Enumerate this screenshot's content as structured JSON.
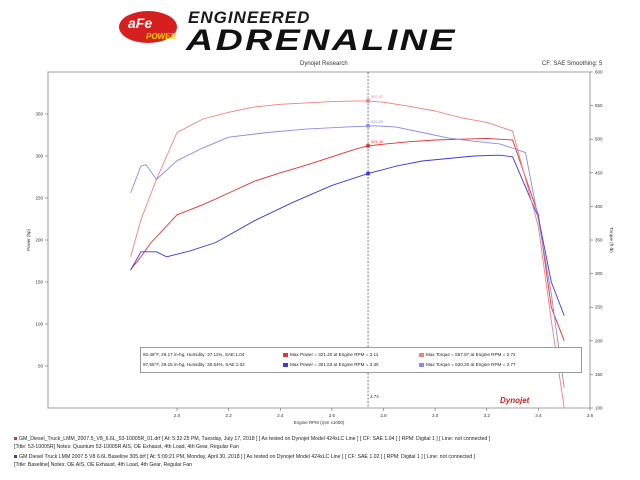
{
  "brand": {
    "logo_main": "aFe",
    "logo_sub": "POWER",
    "headline_top": "ENGINEERED",
    "headline_main": "ADRENALINE"
  },
  "header": {
    "center": "Dynojet Research",
    "right": "CF: SAE Smoothing: 5"
  },
  "colors": {
    "red": "#e53030",
    "blue": "#3a3ad8",
    "pink": "#f08080",
    "lavender": "#8a8ae6"
  },
  "legend": {
    "row1": {
      "conditions": "92.48°F, 29.17 in-hg, Humidity: 37.11%, SAE:1.04",
      "power": "Max Power = 321.40 at Engine RPM = 3.11",
      "torque": "Max Torque = 557.57 at Engine RPM = 2.72"
    },
    "row2": {
      "conditions": "97.65°F, 29.15 in-hg, Humidity: 30.54%, SAE:1.02",
      "power": "Max Power = 301.63 at Engine RPM = 3.30",
      "torque": "Max Torque = 520.20 at Engine RPM = 2.77"
    }
  },
  "footer": {
    "line1": "GM_Diesel_Truck_LMM_2007.5_V8_6.6L_53-10005R_01.drf   [ At: 5:32:25 PM, Tuesday, July 17, 2018 ]   [ As tested on Dynojet Model 424xLC Line ]   [ CF: SAE 1.04 ]   [ RPM: Digital 1 ]   [ Line: not connected ]",
    "line1b": "[Title: 53-10005R]  Notes: Quantum 53-10005R AIS, OE Exhaust, 4th Load, 4th Gear, Regular Fan",
    "line2": "GM Diesel Truck LMM 2007.5 V8 6.6L Baseline 305.drf   [ At: 5:09:21 PM, Monday, April 30, 2018 ]   [ As tested on Dynojet Model 424xLC Line ]   [ CF: SAE 1.02 ]   [ RPM: Digital 1 ]   [ Line: not connected ]",
    "line2b": "[Title: Baseline]  Notes: OE AIS, OE Exhaust, 4th Load, 4th Gear, Regular Fan"
  },
  "cursor": {
    "label": "2.74"
  },
  "dyno_brand": "Dynojet",
  "chart_data": {
    "type": "line",
    "xlabel": "Engine RPM (rpm x1000)",
    "ylabel_left": "Power (hp)",
    "ylabel_right": "Torque (ft-lb)",
    "xlim": [
      1.5,
      3.6
    ],
    "x_ticks": [
      "2.0",
      "2.2",
      "2.4",
      "2.6",
      "2.8",
      "3.0",
      "3.2",
      "3.4",
      "3.6"
    ],
    "ylim_left": [
      0,
      400
    ],
    "y_ticks_left": [
      "50",
      "100",
      "150",
      "200",
      "250",
      "300",
      "350"
    ],
    "ylim_right": [
      100,
      600
    ],
    "y_ticks_right": [
      "600",
      "550",
      "500",
      "450",
      "400",
      "350",
      "300",
      "250",
      "200",
      "150",
      "100"
    ],
    "grid": false,
    "cursor_rpm": 2.74,
    "cursor_values": [
      "557.57",
      "520.20",
      "321.40"
    ],
    "series": [
      {
        "axis": "left",
        "color": "#e53030",
        "x": [
          1.82,
          1.85,
          1.9,
          2.0,
          2.1,
          2.2,
          2.3,
          2.4,
          2.5,
          2.6,
          2.7,
          2.74,
          2.8,
          2.9,
          3.0,
          3.1,
          3.2,
          3.3,
          3.4,
          3.45,
          3.5
        ],
        "y": [
          165,
          176,
          197,
          230,
          242,
          256,
          270,
          280,
          289,
          299,
          309,
          312,
          314,
          317,
          319,
          320,
          321,
          319,
          230,
          120,
          80
        ]
      },
      {
        "axis": "left",
        "color": "#3a3ad8",
        "x": [
          1.82,
          1.86,
          1.92,
          1.96,
          2.05,
          2.15,
          2.3,
          2.45,
          2.6,
          2.74,
          2.85,
          2.95,
          3.05,
          3.15,
          3.25,
          3.3,
          3.4,
          3.45,
          3.5
        ],
        "y": [
          164,
          186,
          186,
          180,
          187,
          197,
          223,
          245,
          265,
          279,
          288,
          294,
          297,
          300,
          301,
          299,
          227,
          150,
          110
        ]
      },
      {
        "axis": "right",
        "color": "#f08080",
        "x": [
          1.82,
          1.86,
          1.92,
          2.0,
          2.1,
          2.2,
          2.3,
          2.4,
          2.5,
          2.6,
          2.7,
          2.74,
          2.8,
          2.9,
          3.0,
          3.1,
          3.2,
          3.3,
          3.4,
          3.45,
          3.5
        ],
        "y": [
          325,
          380,
          440,
          510,
          530,
          540,
          548,
          552,
          554,
          556,
          557,
          557,
          555,
          549,
          542,
          532,
          525,
          512,
          370,
          230,
          100
        ]
      },
      {
        "axis": "right",
        "color": "#8a8ae6",
        "x": [
          1.82,
          1.86,
          1.88,
          1.92,
          2.0,
          2.1,
          2.2,
          2.35,
          2.5,
          2.65,
          2.77,
          2.85,
          2.95,
          3.05,
          3.15,
          3.25,
          3.35,
          3.4,
          3.45,
          3.5
        ],
        "y": [
          420,
          460,
          462,
          440,
          468,
          487,
          503,
          510,
          515,
          518,
          520,
          518,
          510,
          502,
          497,
          493,
          480,
          380,
          270,
          130
        ]
      }
    ]
  }
}
